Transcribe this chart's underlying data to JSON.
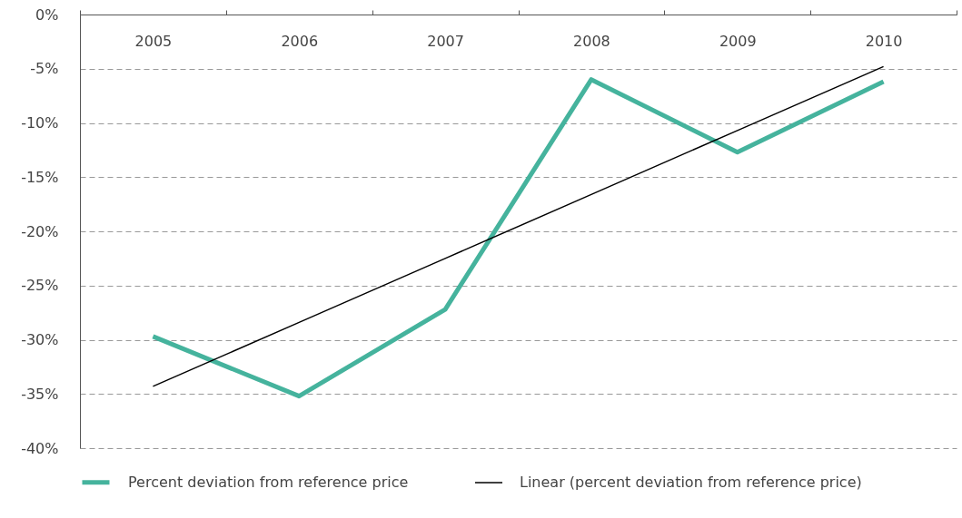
{
  "chart_data": {
    "type": "line",
    "categories": [
      "2005",
      "2006",
      "2007",
      "2008",
      "2009",
      "2010"
    ],
    "series": [
      {
        "name": "Percent deviation from reference price",
        "color": "#45b39d",
        "values": [
          -29.7,
          -35.2,
          -27.2,
          -6.0,
          -12.7,
          -6.2
        ]
      },
      {
        "name": "Linear (percent deviation from reference price)",
        "color": "#000000",
        "values": [
          -34.3,
          -28.4,
          -22.5,
          -16.6,
          -10.7,
          -4.8
        ]
      }
    ],
    "ylim": [
      -40,
      0
    ],
    "yticks": [
      {
        "value": 0,
        "label": "0%"
      },
      {
        "value": -5,
        "label": "-5%"
      },
      {
        "value": -10,
        "label": "-10%"
      },
      {
        "value": -15,
        "label": "-15%"
      },
      {
        "value": -20,
        "label": "-20%"
      },
      {
        "value": -25,
        "label": "-25%"
      },
      {
        "value": -30,
        "label": "-30%"
      },
      {
        "value": -35,
        "label": "-35%"
      },
      {
        "value": -40,
        "label": "-40%"
      }
    ],
    "grid": "y",
    "legend": "bottom",
    "marker": "none",
    "line_style": "solid"
  }
}
